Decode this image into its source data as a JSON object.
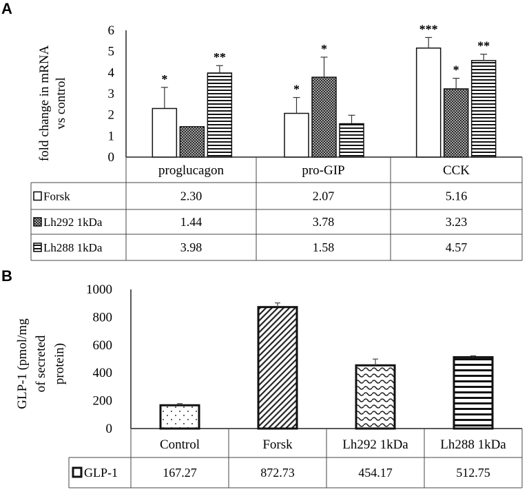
{
  "chart_data": [
    {
      "panel": "A",
      "type": "bar",
      "ylabel_lines": [
        "fold change in mRNA",
        "vs control"
      ],
      "ylim": [
        0,
        6
      ],
      "yticks": [
        "0",
        "1",
        "2",
        "3",
        "4",
        "5",
        "6"
      ],
      "categories": [
        "proglucagon",
        "pro-GIP",
        "CCK"
      ],
      "series": [
        {
          "name": "Forsk",
          "values": [
            2.3,
            2.07,
            5.16
          ],
          "labels": [
            "2.30",
            "2.07",
            "5.16"
          ],
          "errors": [
            1.0,
            0.75,
            0.5
          ],
          "sig": [
            "*",
            "*",
            "***"
          ],
          "pattern": "open"
        },
        {
          "name": "Lh292 1kDa",
          "values": [
            1.44,
            3.78,
            3.23
          ],
          "labels": [
            "1.44",
            "3.78",
            "3.23"
          ],
          "errors": [
            0,
            0.95,
            0.5
          ],
          "sig": [
            "",
            "*",
            "*"
          ],
          "pattern": "dots"
        },
        {
          "name": "Lh288 1kDa",
          "values": [
            3.98,
            1.58,
            4.57
          ],
          "labels": [
            "3.98",
            "1.58",
            "4.57"
          ],
          "errors": [
            0.35,
            0.4,
            0.3
          ],
          "sig": [
            "**",
            "",
            "**"
          ],
          "pattern": "hlines"
        }
      ],
      "legend": "data-table"
    },
    {
      "panel": "B",
      "type": "bar",
      "ylabel_lines": [
        "GLP-1 (pmol/mg",
        "of secreted",
        "protein)"
      ],
      "ylim": [
        0,
        1000
      ],
      "yticks": [
        "0",
        "200",
        "400",
        "600",
        "800",
        "1000"
      ],
      "categories": [
        "Control",
        "Forsk",
        "Lh292 1kDa",
        "Lh288 1kDa"
      ],
      "series": [
        {
          "name": "GLP-1",
          "values": [
            167.27,
            872.73,
            454.17,
            512.75
          ],
          "labels": [
            "167.27",
            "872.73",
            "454.17",
            "512.75"
          ],
          "errors": [
            12,
            30,
            45,
            10
          ]
        }
      ],
      "bar_patterns": [
        "dots",
        "diag",
        "wave",
        "hlines"
      ],
      "legend": "data-table"
    }
  ]
}
